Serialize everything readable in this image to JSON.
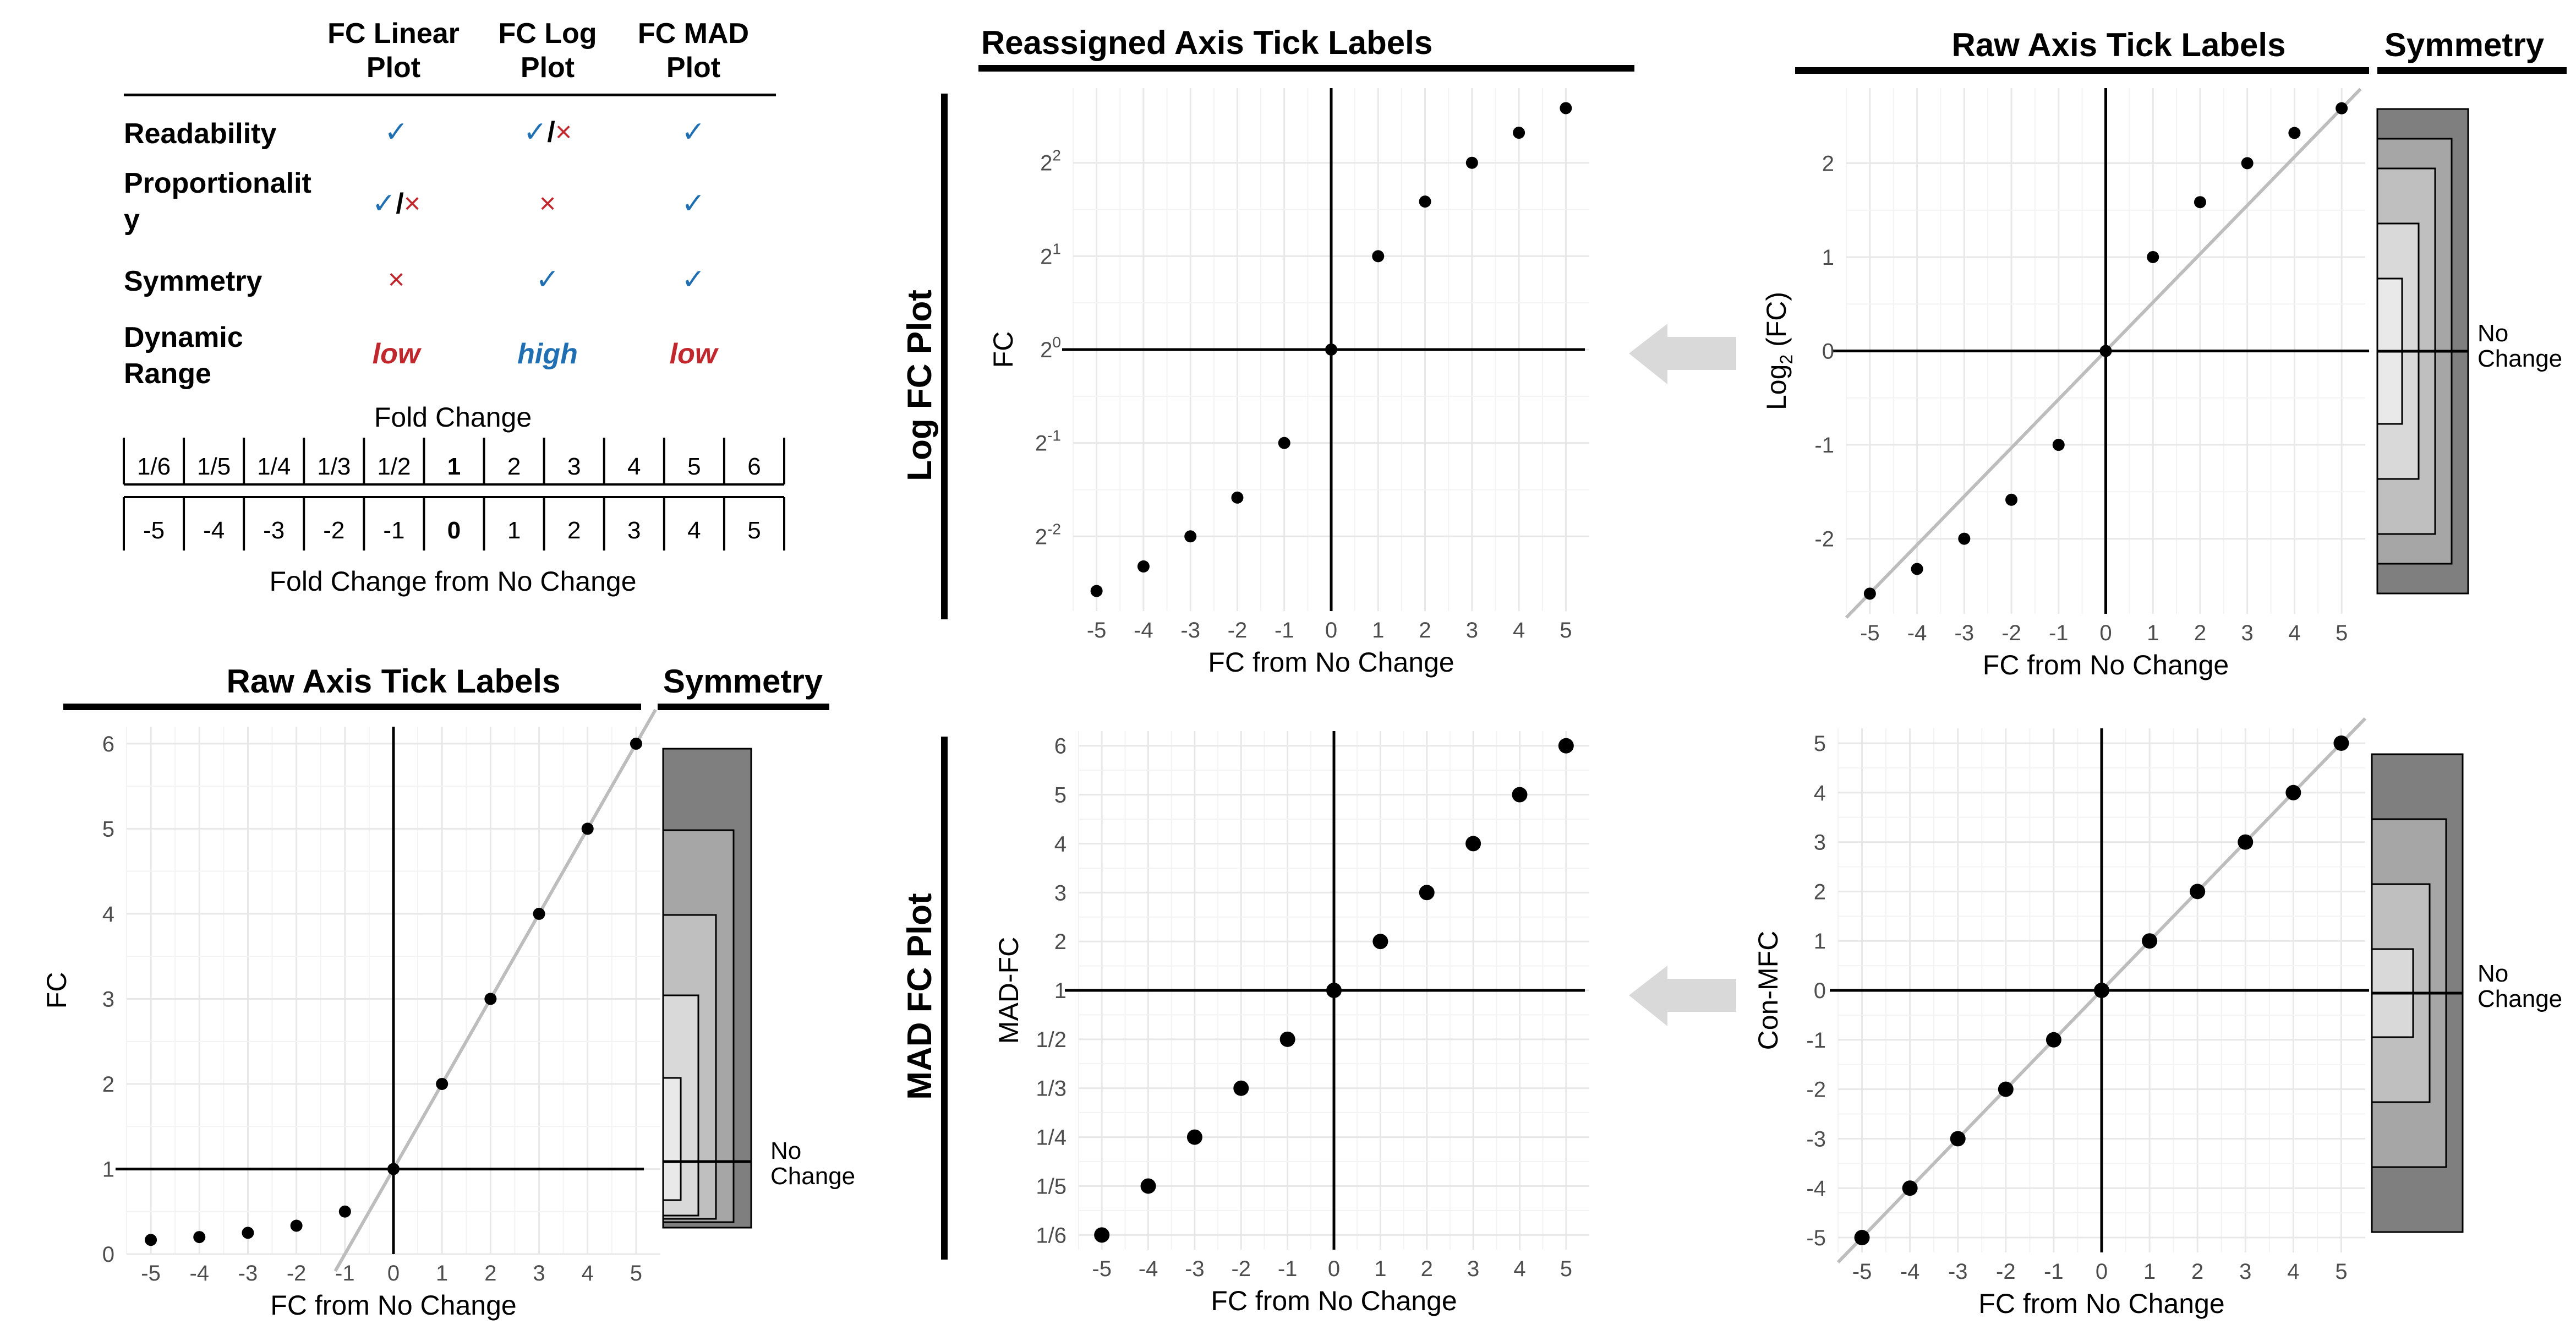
{
  "comparison_table": {
    "columns": [
      "FC Linear Plot",
      "FC Log Plot",
      "FC MAD Plot"
    ],
    "rows": [
      {
        "label": "Readability",
        "values": [
          "✓",
          "✓/×",
          "✓"
        ]
      },
      {
        "label": "Proportionality",
        "values": [
          "✓/×",
          "×",
          "✓"
        ]
      },
      {
        "label": "Symmetry",
        "values": [
          "×",
          "✓",
          "✓"
        ]
      },
      {
        "label": "Dynamic Range",
        "values": [
          "low",
          "high",
          "low"
        ]
      }
    ]
  },
  "fold_change_table": {
    "top_caption": "Fold Change",
    "bottom_caption": "Fold Change from No Change",
    "fold_change": [
      "1/6",
      "1/5",
      "1/4",
      "1/3",
      "1/2",
      "1",
      "2",
      "3",
      "4",
      "5",
      "6"
    ],
    "fc_from_no_change": [
      "-5",
      "-4",
      "-3",
      "-2",
      "-1",
      "0",
      "1",
      "2",
      "3",
      "4",
      "5"
    ]
  },
  "section_labels": {
    "log_fc_plot": "Log FC Plot",
    "mad_fc_plot": "MAD FC Plot",
    "reassigned_axis": "Reassigned Axis Tick Labels",
    "raw_axis_log": "Raw Axis Tick Labels",
    "raw_axis_linear": "Raw Axis Tick Labels",
    "symmetry_log": "Symmetry",
    "symmetry_linear": "Symmetry",
    "symmetry_mad": "",
    "no_change": "No Change"
  },
  "chart_data": [
    {
      "id": "linear",
      "type": "scatter",
      "xlabel": "FC from No Change",
      "ylabel": "FC",
      "xlim": [
        -5.5,
        5.5
      ],
      "ylim": [
        0,
        6.2
      ],
      "x_ticks": [
        "-5",
        "-4",
        "-3",
        "-2",
        "-1",
        "0",
        "1",
        "2",
        "3",
        "4",
        "5"
      ],
      "y_ticks": [
        "0",
        "1",
        "2",
        "3",
        "4",
        "5",
        "6"
      ],
      "x": [
        -5,
        -4,
        -3,
        -2,
        -1,
        0,
        1,
        2,
        3,
        4,
        5
      ],
      "y": [
        0.1667,
        0.2,
        0.25,
        0.3333,
        0.5,
        1,
        2,
        3,
        4,
        5,
        6
      ],
      "reference_lines": {
        "vertical_x": 0,
        "horizontal_y": 1
      },
      "diagonal": "y = x + 1",
      "grid": true
    },
    {
      "id": "log_reassigned",
      "type": "scatter",
      "xlabel": "FC from No Change",
      "ylabel": "FC",
      "xlim": [
        -5.5,
        5.5
      ],
      "ylim": [
        -2.8,
        2.8
      ],
      "x_ticks": [
        "-5",
        "-4",
        "-3",
        "-2",
        "-1",
        "0",
        "1",
        "2",
        "3",
        "4",
        "5"
      ],
      "y_ticks": [
        "2^-2",
        "2^-1",
        "2^0",
        "2^1",
        "2^2"
      ],
      "x": [
        -5,
        -4,
        -3,
        -2,
        -1,
        0,
        1,
        2,
        3,
        4,
        5
      ],
      "y": [
        -2.585,
        -2.322,
        -2,
        -1.585,
        -1,
        0,
        1,
        1.585,
        2,
        2.322,
        2.585
      ],
      "reference_lines": {
        "vertical_x": 0,
        "horizontal_y": 0
      },
      "grid": true
    },
    {
      "id": "log_raw",
      "type": "scatter",
      "xlabel": "FC from No Change",
      "ylabel": "Log2 (FC)",
      "xlim": [
        -5.5,
        5.5
      ],
      "ylim": [
        -2.8,
        2.8
      ],
      "x_ticks": [
        "-5",
        "-4",
        "-3",
        "-2",
        "-1",
        "0",
        "1",
        "2",
        "3",
        "4",
        "5"
      ],
      "y_ticks": [
        "-2",
        "-1",
        "0",
        "1",
        "2"
      ],
      "x": [
        -5,
        -4,
        -3,
        -2,
        -1,
        0,
        1,
        2,
        3,
        4,
        5
      ],
      "y": [
        -2.585,
        -2.322,
        -2,
        -1.585,
        -1,
        0,
        1,
        1.585,
        2,
        2.322,
        2.585
      ],
      "reference_lines": {
        "vertical_x": 0,
        "horizontal_y": 0
      },
      "diagonal": "y = 0.517 x",
      "grid": true
    },
    {
      "id": "mad_reassigned",
      "type": "scatter",
      "xlabel": "FC from No Change",
      "ylabel": "MAD-FC",
      "xlim": [
        -5.5,
        5.5
      ],
      "ylim": [
        -5.3,
        5.3
      ],
      "x_ticks": [
        "-5",
        "-4",
        "-3",
        "-2",
        "-1",
        "0",
        "1",
        "2",
        "3",
        "4",
        "5"
      ],
      "y_ticks": [
        "1/6",
        "1/5",
        "1/4",
        "1/3",
        "1/2",
        "1",
        "2",
        "3",
        "4",
        "5",
        "6"
      ],
      "x": [
        -5,
        -4,
        -3,
        -2,
        -1,
        0,
        1,
        2,
        3,
        4,
        5
      ],
      "y": [
        -5,
        -4,
        -3,
        -2,
        -1,
        0,
        1,
        2,
        3,
        4,
        5
      ],
      "reference_lines": {
        "vertical_x": 0,
        "horizontal_y": 0
      },
      "grid": true
    },
    {
      "id": "mad_raw",
      "type": "scatter",
      "xlabel": "FC from No Change",
      "ylabel": "Con-MFC",
      "xlim": [
        -5.5,
        5.5
      ],
      "ylim": [
        -5.3,
        5.3
      ],
      "x_ticks": [
        "-5",
        "-4",
        "-3",
        "-2",
        "-1",
        "0",
        "1",
        "2",
        "3",
        "4",
        "5"
      ],
      "y_ticks": [
        "-5",
        "-4",
        "-3",
        "-2",
        "-1",
        "0",
        "1",
        "2",
        "3",
        "4",
        "5"
      ],
      "x": [
        -5,
        -4,
        -3,
        -2,
        -1,
        0,
        1,
        2,
        3,
        4,
        5
      ],
      "y": [
        -5,
        -4,
        -3,
        -2,
        -1,
        0,
        1,
        2,
        3,
        4,
        5
      ],
      "reference_lines": {
        "vertical_x": 0,
        "horizontal_y": 0
      },
      "diagonal": "y = x",
      "grid": true
    }
  ],
  "colors": {
    "check": "#1f6fb2",
    "cross": "#c0282d",
    "high": "#1f6fb2",
    "low": "#c0282d",
    "grid": "#e8e8e8",
    "diagonal": "#bdbdbd",
    "arrow": "#d9d9d9",
    "sym_1": "#7f7f7f",
    "sym_2": "#a6a6a6",
    "sym_3": "#bfbfbf",
    "sym_4": "#d9d9d9",
    "sym_5": "#e9e9e9",
    "sym_6": "#f7f7f7"
  }
}
